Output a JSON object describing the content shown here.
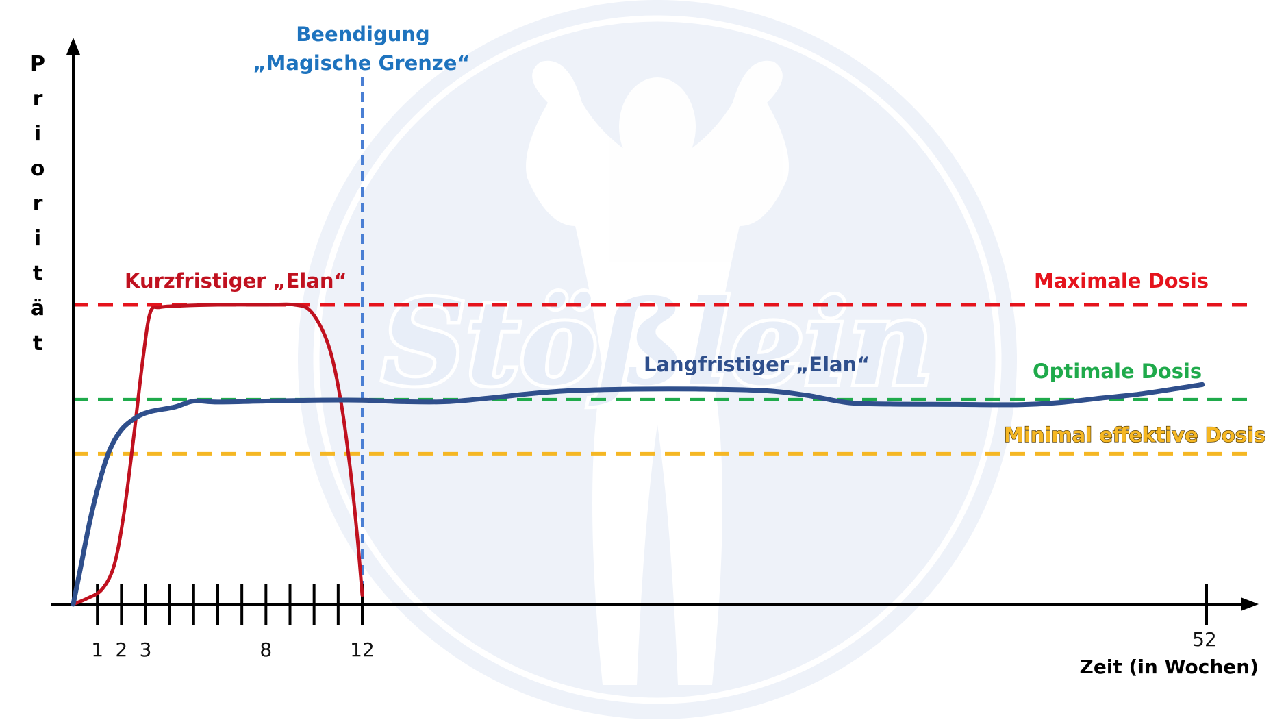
{
  "chart_data": {
    "type": "line",
    "xlabel": "Zeit (in Wochen)",
    "ylabel": "Priorität",
    "x_ticks_labeled": [
      1,
      2,
      3,
      8,
      12,
      52
    ],
    "x_ticks_minor": [
      0,
      1,
      2,
      3,
      4,
      5,
      6,
      7,
      8,
      9,
      10,
      11,
      12,
      52
    ],
    "xlim": [
      0,
      53
    ],
    "ylim": [
      0,
      100
    ],
    "series": [
      {
        "name": "Kurzfristiger „Elan“",
        "color": "#c0111f",
        "points": [
          [
            0,
            0
          ],
          [
            0.6,
            2
          ],
          [
            1.2,
            5
          ],
          [
            1.7,
            13
          ],
          [
            2.1,
            30
          ],
          [
            2.5,
            55
          ],
          [
            2.9,
            82
          ],
          [
            3.2,
            97
          ],
          [
            3.6,
            98.7
          ],
          [
            4.5,
            99.2
          ],
          [
            6,
            99.5
          ],
          [
            8,
            99.5
          ],
          [
            9.2,
            99.5
          ],
          [
            9.9,
            97
          ],
          [
            10.6,
            86
          ],
          [
            11.1,
            68
          ],
          [
            11.5,
            45
          ],
          [
            11.8,
            22
          ],
          [
            12,
            3
          ]
        ]
      },
      {
        "name": "Langfristiger „Elan“",
        "color": "#2f4f8c",
        "points": [
          [
            0,
            0
          ],
          [
            0.3,
            12
          ],
          [
            0.7,
            28
          ],
          [
            1.1,
            41
          ],
          [
            1.5,
            51
          ],
          [
            2,
            58
          ],
          [
            2.6,
            62
          ],
          [
            3.2,
            64
          ],
          [
            4.2,
            65.5
          ],
          [
            5,
            67.5
          ],
          [
            6,
            67.2
          ],
          [
            8,
            67.5
          ],
          [
            10,
            67.8
          ],
          [
            12,
            67.8
          ],
          [
            14,
            67.3
          ],
          [
            16,
            67.3
          ],
          [
            18,
            68.5
          ],
          [
            20,
            70
          ],
          [
            22,
            71
          ],
          [
            25,
            71.5
          ],
          [
            28,
            71.5
          ],
          [
            31,
            71
          ],
          [
            33,
            69.5
          ],
          [
            35,
            67
          ],
          [
            37,
            66.5
          ],
          [
            40,
            66.4
          ],
          [
            43,
            66.3
          ],
          [
            45,
            67
          ],
          [
            47,
            68.5
          ],
          [
            49,
            70
          ],
          [
            51.8,
            73
          ]
        ]
      }
    ],
    "reference_lines": [
      {
        "name": "Maximale Dosis",
        "axis": "y",
        "value": 99.5,
        "color": "#e5131c",
        "style": "dashed"
      },
      {
        "name": "Optimale Dosis",
        "axis": "y",
        "value": 68,
        "color": "#1faa4b",
        "style": "dashed"
      },
      {
        "name": "Minimal effektive Dosis",
        "axis": "y",
        "value": 50,
        "color": "#f5b724",
        "style": "dashed"
      },
      {
        "name": "Beendigung „Magische Grenze“",
        "axis": "x",
        "value": 12,
        "color": "#4a7fd4",
        "style": "dashed"
      }
    ],
    "annotations": [
      {
        "text": "Kurzfristiger „Elan“",
        "color": "#c0111f"
      },
      {
        "text": "Langfristiger „Elan“",
        "color": "#2f4f8c"
      },
      {
        "text": "Maximale Dosis",
        "color": "#e5131c"
      },
      {
        "text": "Optimale Dosis",
        "color": "#1faa4b"
      },
      {
        "text": "Minimal effektive Dosis",
        "color": "#f5b724"
      },
      {
        "text_line1": "Beendigung",
        "text_line2": "„Magische Grenze“",
        "color": "#1e73be"
      }
    ],
    "watermark": {
      "text": "Stößlein",
      "color": "#e8eef8"
    }
  }
}
